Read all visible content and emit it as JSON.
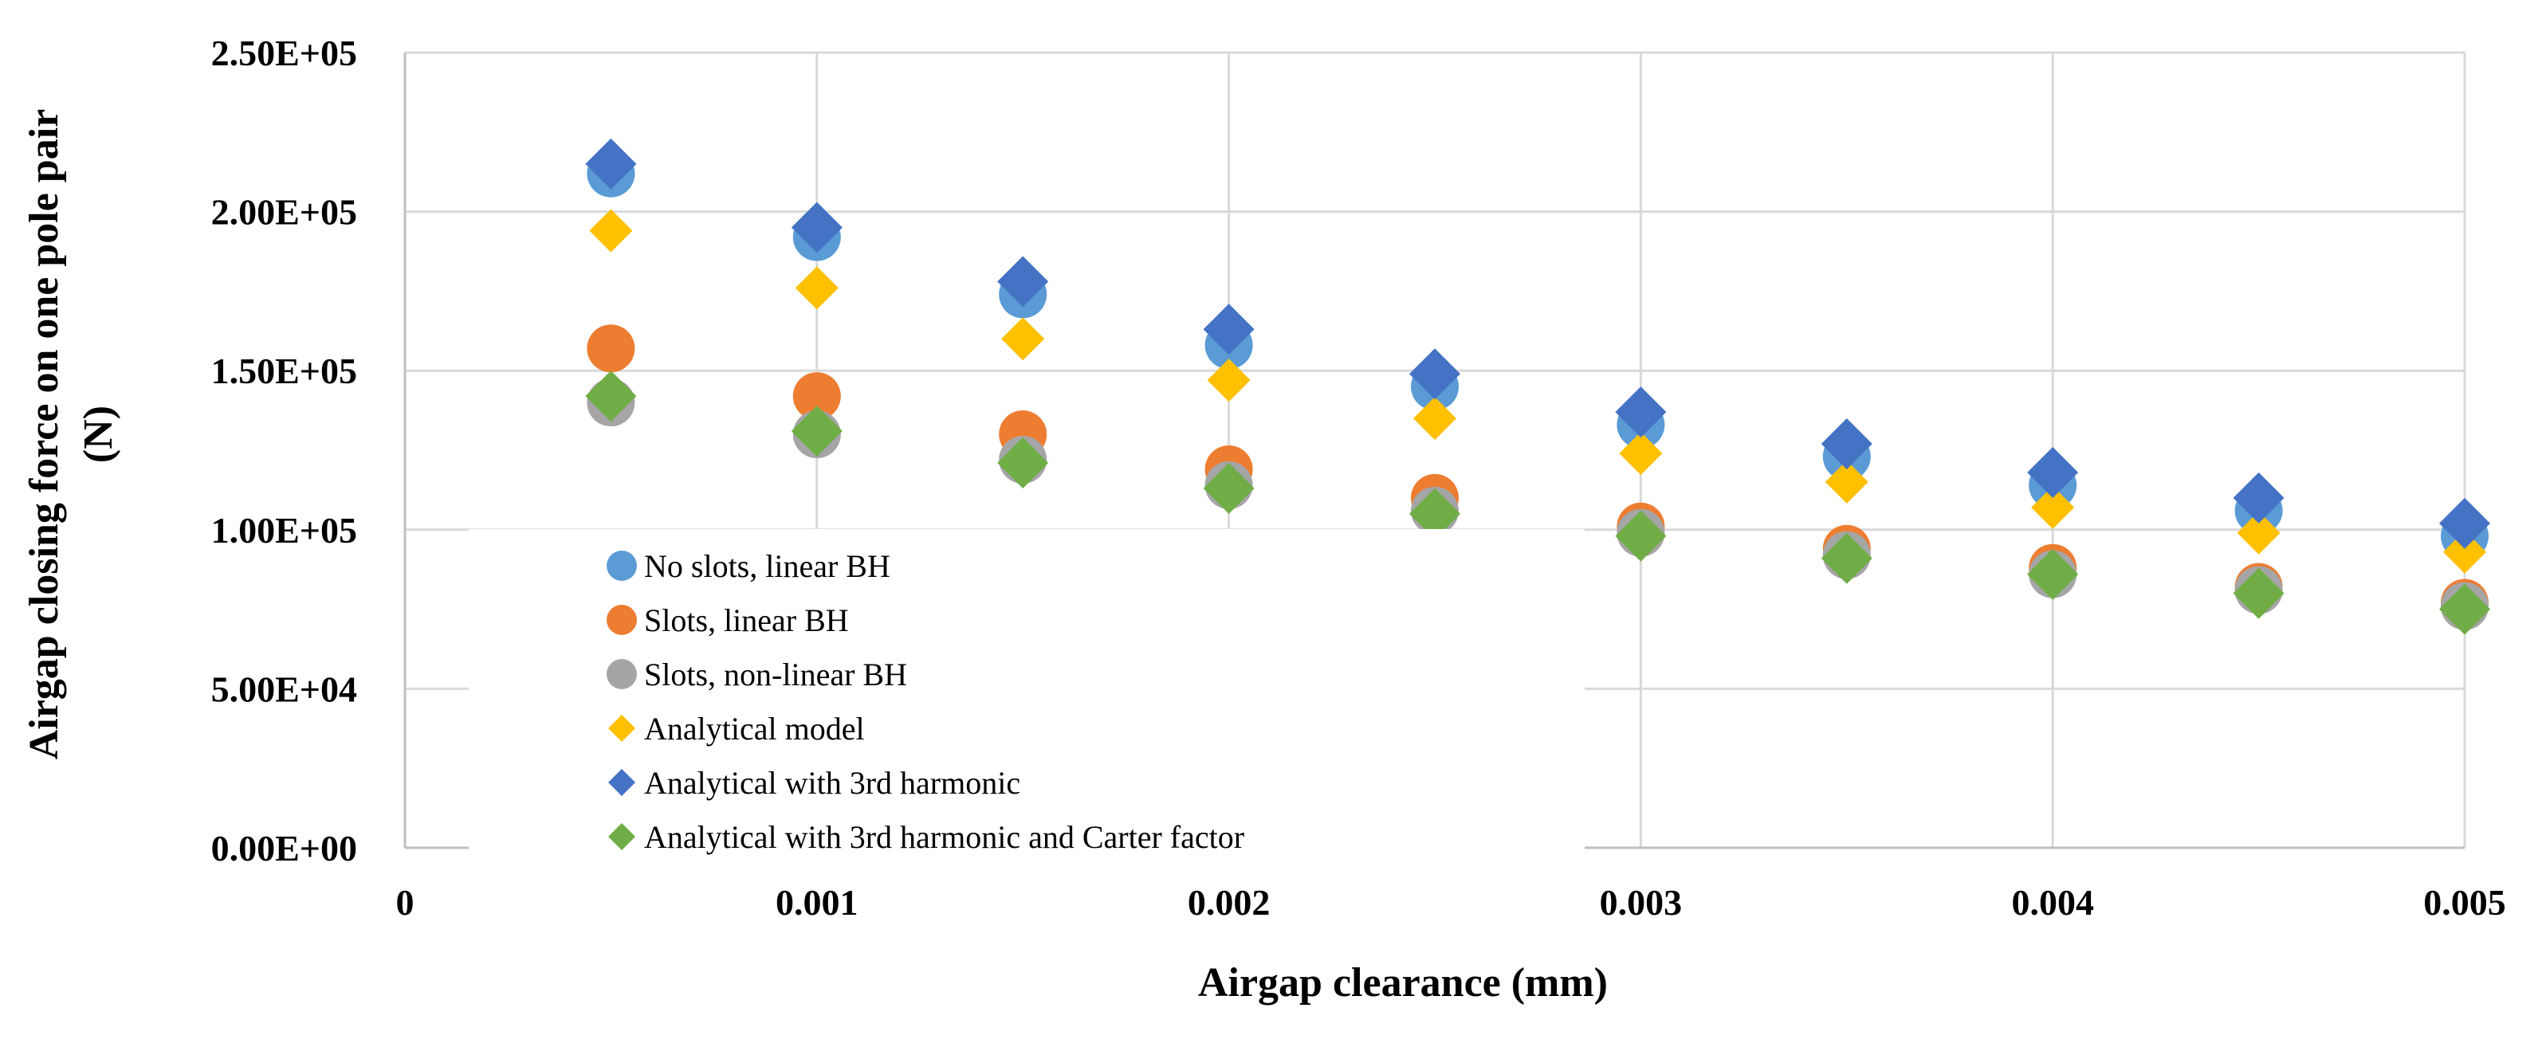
{
  "chart_data": {
    "type": "scatter",
    "title": "",
    "xlabel": "Airgap clearance (mm)",
    "ylabel_line1": "Airgap closing force on one pole pair",
    "ylabel_line2": "(N)",
    "xlim": [
      0,
      0.005
    ],
    "ylim": [
      0,
      250000
    ],
    "x_ticks": [
      "0",
      "0.001",
      "0.002",
      "0.003",
      "0.004",
      "0.005"
    ],
    "x_tick_values": [
      0,
      0.001,
      0.002,
      0.003,
      0.004,
      0.005
    ],
    "y_ticks": [
      "0.00E+00",
      "5.00E+04",
      "1.00E+05",
      "1.50E+05",
      "2.00E+05",
      "2.50E+05"
    ],
    "y_tick_values": [
      0,
      50000,
      100000,
      150000,
      200000,
      250000
    ],
    "grid": true,
    "legend_position": "lower-left inside plot",
    "x": [
      0.0005,
      0.001,
      0.0015,
      0.002,
      0.0025,
      0.003,
      0.0035,
      0.004,
      0.0045,
      0.005
    ],
    "series": [
      {
        "name": "No slots, linear BH",
        "marker": "circle",
        "color": "#5B9BD5",
        "values": [
          212000,
          192000,
          174000,
          158000,
          145000,
          133000,
          123000,
          114000,
          106000,
          98000
        ]
      },
      {
        "name": "Slots, linear BH",
        "marker": "circle",
        "color": "#ED7D31",
        "values": [
          157000,
          142000,
          130000,
          119000,
          110000,
          101000,
          94000,
          88000,
          82000,
          77000
        ]
      },
      {
        "name": "Slots, non-linear BH",
        "marker": "circle",
        "color": "#A5A5A5",
        "values": [
          140000,
          130000,
          122000,
          114000,
          106000,
          99000,
          92000,
          86000,
          81000,
          76000
        ]
      },
      {
        "name": "Analytical model",
        "marker": "diamond",
        "color": "#FFC000",
        "values": [
          194000,
          176000,
          160000,
          147000,
          135000,
          124000,
          115000,
          107000,
          99000,
          93000
        ]
      },
      {
        "name": "Analytical with 3rd harmonic",
        "marker": "diamond",
        "color": "#4472C4",
        "values": [
          215000,
          195000,
          178000,
          163000,
          149000,
          137000,
          127000,
          118000,
          110000,
          102000
        ]
      },
      {
        "name": "Analytical with 3rd harmonic and Carter factor",
        "marker": "diamond",
        "color": "#70AD47",
        "values": [
          142000,
          131000,
          121000,
          113000,
          105000,
          98000,
          91000,
          86000,
          80000,
          75000
        ]
      }
    ]
  }
}
